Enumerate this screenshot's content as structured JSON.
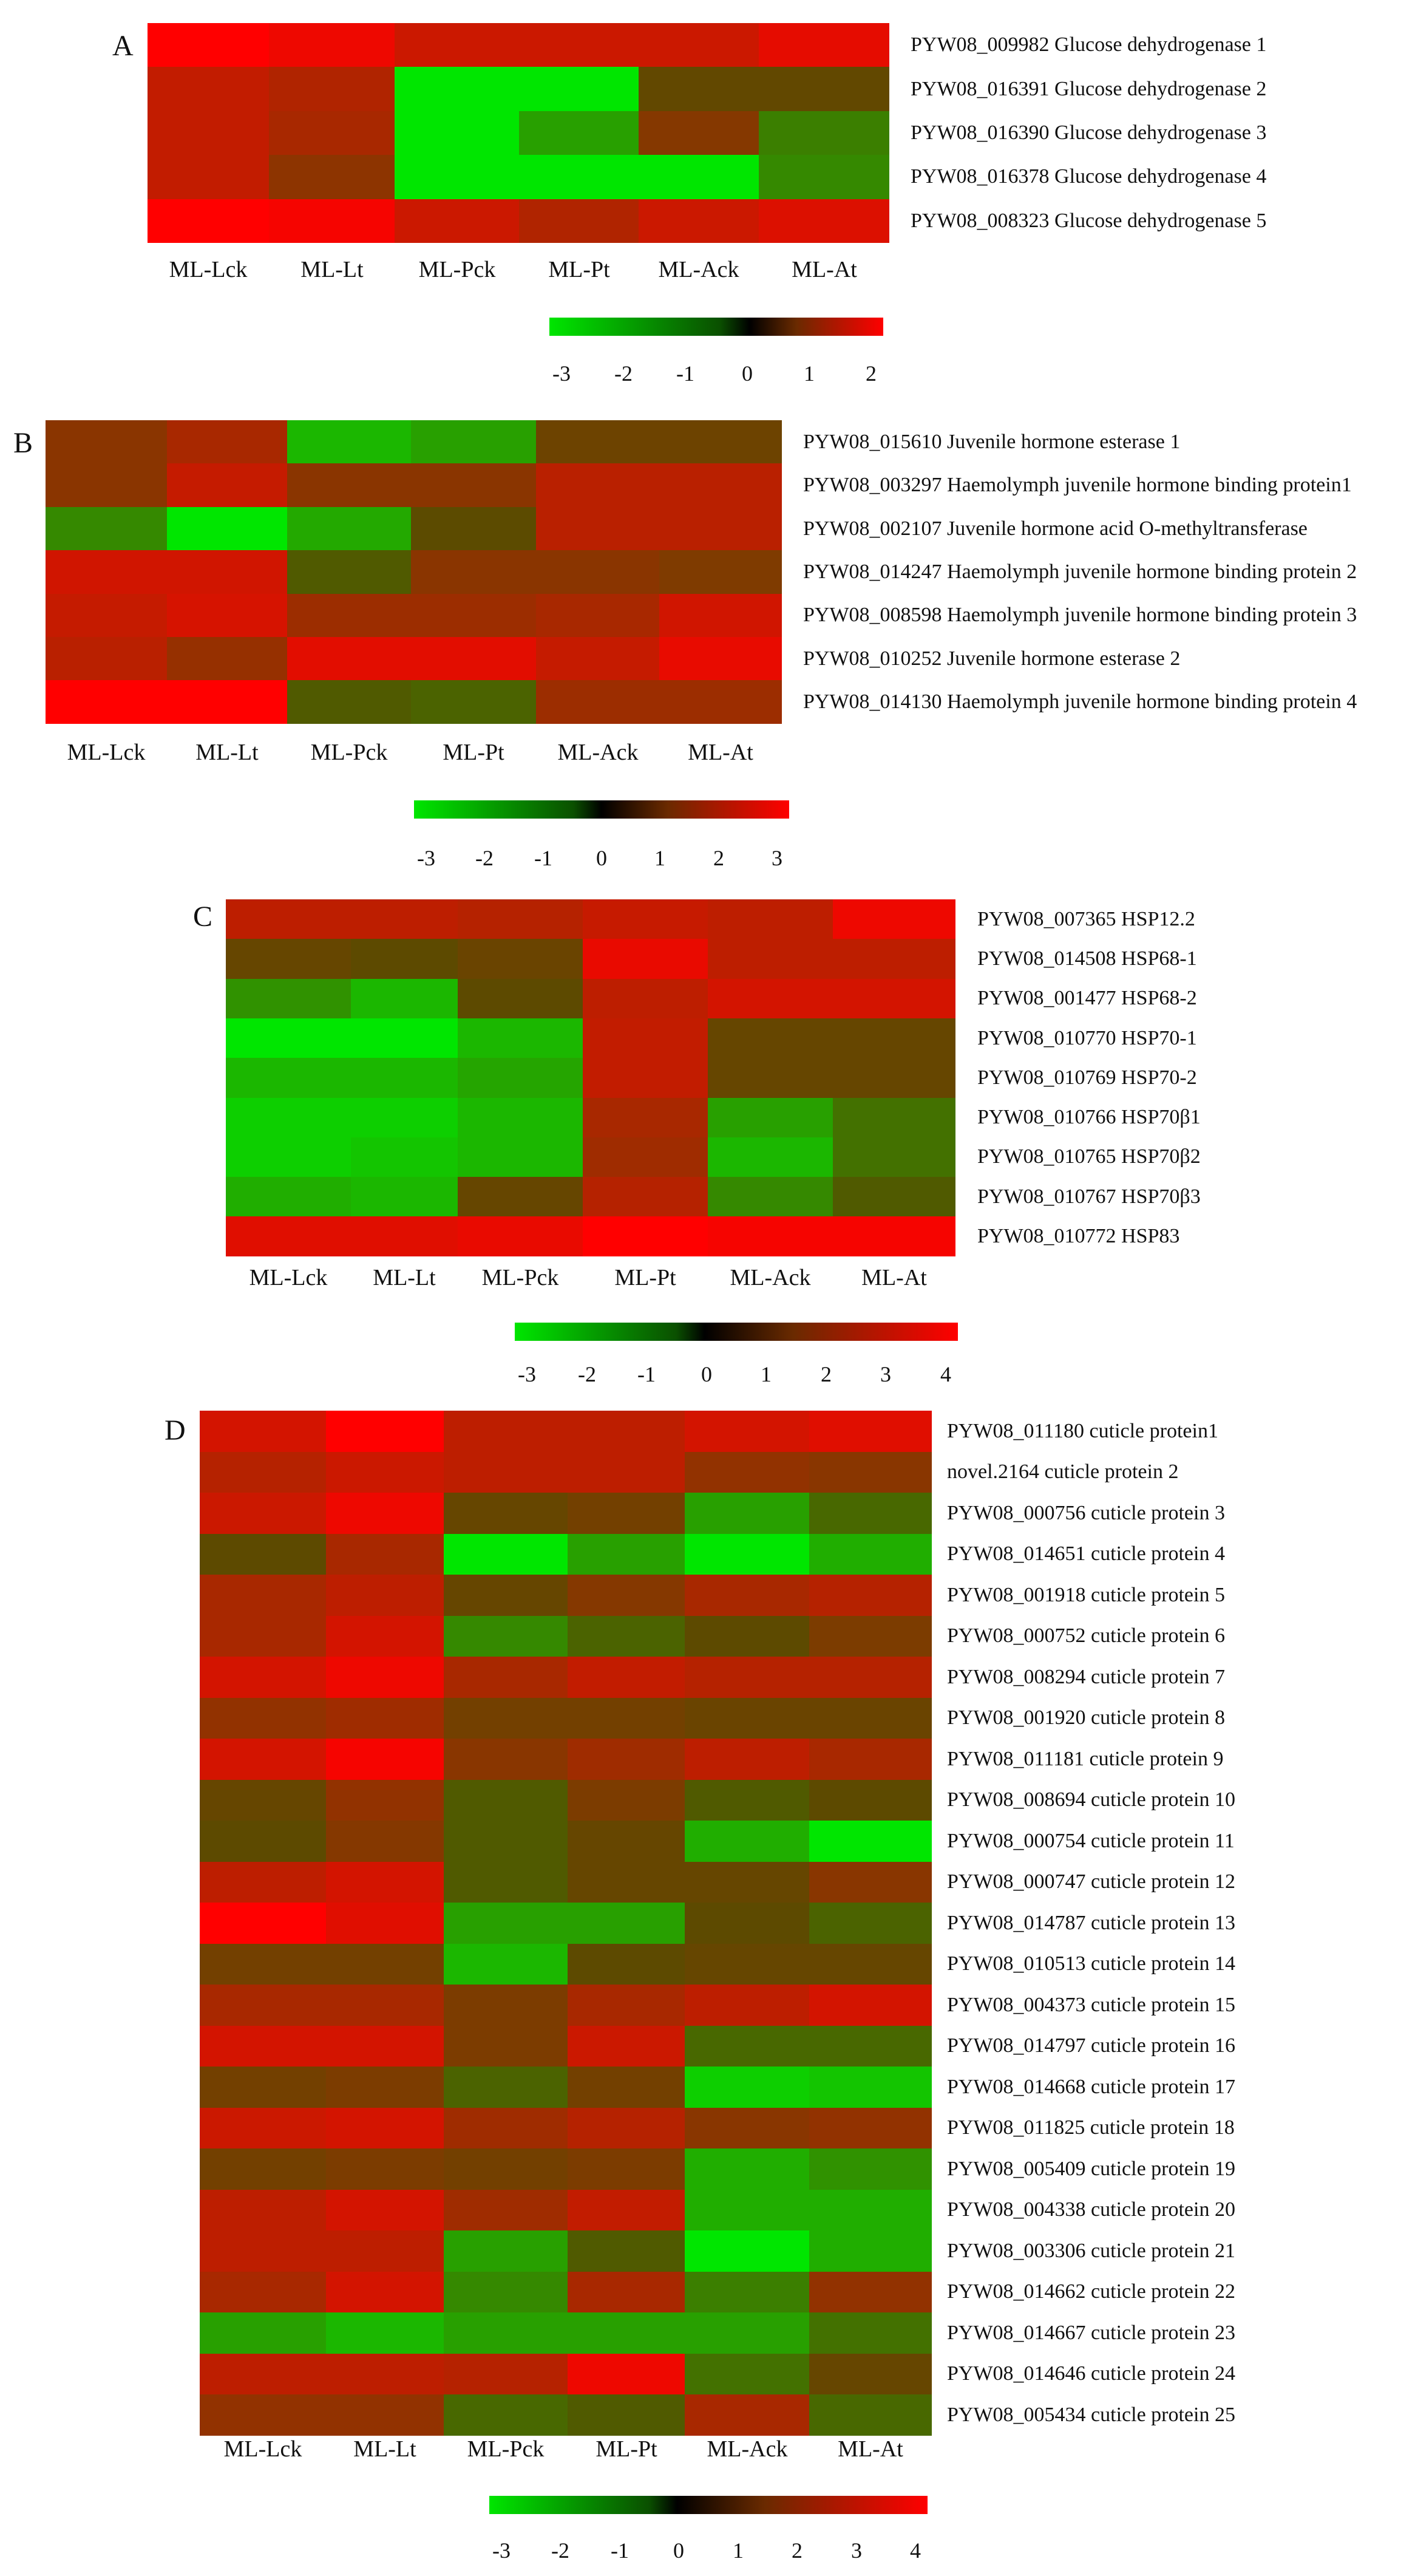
{
  "chart_data": [
    {
      "type": "heatmap",
      "panel_label": "A",
      "columns": [
        "ML-Lck",
        "ML-Lt",
        "ML-Pck",
        "ML-Pt",
        "ML-Ack",
        "ML-At"
      ],
      "rows": [
        "PYW08_009982 Glucose dehydrogenase 1",
        "PYW08_016391 Glucose dehydrogenase 2",
        "PYW08_016390 Glucose dehydrogenase 3",
        "PYW08_016378 Glucose dehydrogenase 4",
        "PYW08_008323 Glucose dehydrogenase 5"
      ],
      "values": [
        [
          2.0,
          1.8,
          1.4,
          1.4,
          1.4,
          1.7
        ],
        [
          1.3,
          1.1,
          -3.0,
          -3.0,
          0.2,
          0.2
        ],
        [
          1.3,
          1.0,
          -3.0,
          -1.5,
          0.6,
          -0.8
        ],
        [
          1.3,
          0.7,
          -3.0,
          -3.0,
          -3.0,
          -1.0
        ],
        [
          2.0,
          1.9,
          1.4,
          1.1,
          1.4,
          1.6
        ]
      ],
      "colorbar": {
        "min": -3,
        "max": 2,
        "ticks": [
          "-3",
          "-2",
          "-1",
          "0",
          "1",
          "2"
        ],
        "colors": [
          "#00e600",
          "#000000",
          "#ff0000"
        ]
      }
    },
    {
      "type": "heatmap",
      "panel_label": "B",
      "columns": [
        "ML-Lck",
        "ML-Lt",
        "ML-Pck",
        "ML-Pt",
        "ML-Ack",
        "ML-At"
      ],
      "rows": [
        "PYW08_015610 Juvenile hormone esterase 1",
        "PYW08_003297 Haemolymph juvenile hormone binding protein1",
        "PYW08_002107 Juvenile hormone acid O-methyltransferase",
        "PYW08_014247 Haemolymph juvenile hormone binding protein 2",
        "PYW08_008598 Haemolymph juvenile hormone binding protein 3",
        "PYW08_010252 Juvenile hormone esterase 2",
        "PYW08_014130 Haemolymph juvenile hormone binding protein 4"
      ],
      "values": [
        [
          1.0,
          1.5,
          -2.0,
          -1.5,
          0.5,
          0.5
        ],
        [
          1.0,
          2.0,
          1.0,
          1.0,
          1.8,
          1.8
        ],
        [
          -1.0,
          -3.0,
          -1.7,
          0.2,
          1.8,
          1.8
        ],
        [
          2.2,
          2.2,
          0.0,
          1.0,
          1.0,
          0.8
        ],
        [
          2.0,
          2.3,
          1.3,
          1.3,
          1.5,
          2.2
        ],
        [
          1.8,
          1.2,
          2.5,
          2.5,
          2.0,
          2.6
        ],
        [
          3.0,
          3.0,
          0.0,
          -0.2,
          1.3,
          1.3
        ]
      ],
      "colorbar": {
        "min": -3,
        "max": 3,
        "ticks": [
          "-3",
          "-2",
          "-1",
          "0",
          "1",
          "2",
          "3"
        ],
        "colors": [
          "#00e600",
          "#000000",
          "#ff0000"
        ]
      }
    },
    {
      "type": "heatmap",
      "panel_label": "C",
      "columns": [
        "ML-Lck",
        "ML-Lt",
        "ML-Pck",
        "ML-Pt",
        "ML-Ack",
        "ML-At"
      ],
      "rows": [
        "PYW08_007365 HSP12.2",
        "PYW08_014508 HSP68-1",
        "PYW08_001477 HSP68-2",
        "PYW08_010770 HSP70-1",
        "PYW08_010769 HSP70-2",
        "PYW08_010766 HSP70β1",
        "PYW08_010765 HSP70β2",
        "PYW08_010767 HSP70β3",
        "PYW08_010772 HSP83"
      ],
      "values": [
        [
          2.5,
          2.5,
          2.3,
          2.7,
          2.5,
          3.6
        ],
        [
          0.5,
          0.3,
          0.6,
          3.5,
          2.5,
          2.5
        ],
        [
          -1.2,
          -2.0,
          0.3,
          2.5,
          3.0,
          3.0
        ],
        [
          -3.0,
          -3.0,
          -2.0,
          2.6,
          0.5,
          0.5
        ],
        [
          -2.0,
          -2.0,
          -1.6,
          2.6,
          0.5,
          0.5
        ],
        [
          -2.5,
          -2.5,
          -2.0,
          2.0,
          -1.5,
          -0.5
        ],
        [
          -2.5,
          -2.3,
          -2.0,
          1.8,
          -2.0,
          -0.5
        ],
        [
          -1.8,
          -2.0,
          0.5,
          2.3,
          -1.0,
          0.0
        ],
        [
          3.3,
          3.3,
          3.5,
          4.0,
          3.8,
          3.8
        ]
      ],
      "colorbar": {
        "min": -3,
        "max": 4,
        "ticks": [
          "-3",
          "-2",
          "-1",
          "0",
          "1",
          "2",
          "3",
          "4"
        ],
        "colors": [
          "#00e600",
          "#000000",
          "#ff0000"
        ]
      }
    },
    {
      "type": "heatmap",
      "panel_label": "D",
      "columns": [
        "ML-Lck",
        "ML-Lt",
        "ML-Pck",
        "ML-Pt",
        "ML-Ack",
        "ML-At"
      ],
      "rows": [
        "PYW08_011180 cuticle protein1",
        "novel.2164 cuticle protein 2",
        "PYW08_000756 cuticle protein 3",
        "PYW08_014651 cuticle protein 4",
        "PYW08_001918 cuticle protein 5",
        "PYW08_000752 cuticle protein 6",
        "PYW08_008294 cuticle protein 7",
        "PYW08_001920 cuticle protein 8",
        "PYW08_011181 cuticle protein 9",
        "PYW08_008694 cuticle protein 10",
        "PYW08_000754 cuticle protein 11",
        "PYW08_000747 cuticle protein 12",
        "PYW08_014787 cuticle protein 13",
        "PYW08_010513 cuticle protein 14",
        "PYW08_004373 cuticle protein 15",
        "PYW08_014797 cuticle protein 16",
        "PYW08_014668 cuticle protein 17",
        "PYW08_011825 cuticle protein 18",
        "PYW08_005409 cuticle protein 19",
        "PYW08_004338 cuticle protein 20",
        "PYW08_003306 cuticle protein 21",
        "PYW08_014662 cuticle protein 22",
        "PYW08_014667 cuticle protein 23",
        "PYW08_014646 cuticle protein 24",
        "PYW08_005434 cuticle protein 25"
      ],
      "values": [
        [
          3.0,
          4.0,
          2.5,
          2.5,
          3.0,
          3.3
        ],
        [
          2.3,
          2.8,
          2.5,
          2.5,
          1.5,
          1.3
        ],
        [
          2.8,
          3.6,
          0.5,
          0.8,
          -1.5,
          -0.3
        ],
        [
          0.3,
          2.0,
          -3.0,
          -1.5,
          -3.0,
          -1.8
        ],
        [
          2.0,
          2.5,
          0.5,
          1.2,
          2.0,
          2.3
        ],
        [
          2.0,
          3.0,
          -1.0,
          -0.2,
          0.3,
          1.0
        ],
        [
          3.0,
          3.6,
          2.0,
          2.6,
          2.3,
          2.3
        ],
        [
          1.5,
          1.8,
          0.8,
          0.8,
          0.6,
          0.6
        ],
        [
          3.0,
          3.8,
          1.3,
          1.8,
          2.5,
          2.0
        ],
        [
          0.5,
          1.5,
          0.0,
          1.0,
          0.0,
          0.3
        ],
        [
          0.3,
          1.2,
          0.0,
          0.5,
          -1.8,
          -3.0
        ],
        [
          2.5,
          3.0,
          0.0,
          0.5,
          0.5,
          1.3
        ],
        [
          4.0,
          3.3,
          -1.5,
          -1.5,
          0.3,
          -0.2
        ],
        [
          0.8,
          0.8,
          -2.0,
          0.3,
          0.5,
          0.5
        ],
        [
          2.0,
          2.0,
          1.0,
          2.0,
          2.5,
          3.0
        ],
        [
          3.0,
          3.0,
          1.0,
          2.8,
          -0.3,
          -0.3
        ],
        [
          0.8,
          1.0,
          -0.2,
          0.8,
          -2.5,
          -2.3
        ],
        [
          2.8,
          3.0,
          1.8,
          2.3,
          1.3,
          1.5
        ],
        [
          0.8,
          1.0,
          0.8,
          1.0,
          -1.8,
          -1.2
        ],
        [
          2.5,
          3.0,
          1.8,
          2.6,
          -1.8,
          -1.8
        ],
        [
          2.5,
          2.5,
          -1.5,
          0.0,
          -3.0,
          -1.8
        ],
        [
          2.0,
          3.0,
          -1.0,
          2.0,
          -0.8,
          1.5
        ],
        [
          -1.5,
          -2.0,
          -1.5,
          -1.5,
          -1.5,
          -0.5
        ],
        [
          2.5,
          2.5,
          2.3,
          3.6,
          -0.5,
          0.5
        ],
        [
          1.5,
          1.5,
          -0.3,
          0.0,
          2.0,
          -0.3
        ]
      ],
      "colorbar": {
        "min": -3,
        "max": 4,
        "ticks": [
          "-3",
          "-2",
          "-1",
          "0",
          "1",
          "2",
          "3",
          "4"
        ],
        "colors": [
          "#00e600",
          "#000000",
          "#ff0000"
        ]
      }
    }
  ]
}
